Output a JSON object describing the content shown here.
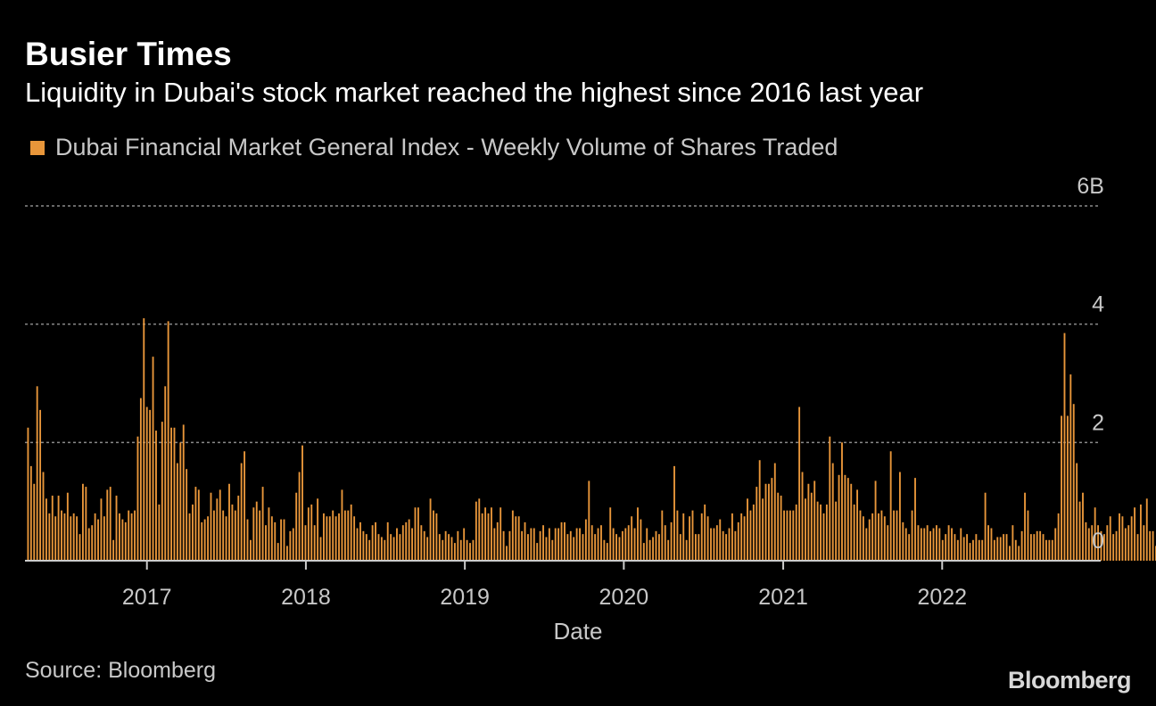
{
  "colors": {
    "bar": "#e8963a",
    "background": "#000000",
    "grid": "#8a8a8a",
    "axis": "#cccccc"
  },
  "source": "Source: Bloomberg",
  "logo": "Bloomberg",
  "chart_data": {
    "type": "bar",
    "title": "Busier Times",
    "subtitle": "Liquidity in Dubai's stock market reached the highest since 2016 last year",
    "legend": [
      "Dubai Financial Market General Index - Weekly Volume of Shares Traded"
    ],
    "legend_position": "top-left",
    "xlabel": "Date",
    "ylabel": "",
    "x_range": [
      "2016-03-27",
      "2022-12-31"
    ],
    "x_ticks": [
      {
        "date": "2017-01-01",
        "label": "2017"
      },
      {
        "date": "2018-01-01",
        "label": "2018"
      },
      {
        "date": "2019-01-01",
        "label": "2019"
      },
      {
        "date": "2020-01-01",
        "label": "2020"
      },
      {
        "date": "2021-01-01",
        "label": "2021"
      },
      {
        "date": "2022-01-01",
        "label": "2022"
      }
    ],
    "ylim": [
      0,
      6
    ],
    "y_unit": "B",
    "y_ticks": [
      {
        "value": 0,
        "label": "0"
      },
      {
        "value": 2,
        "label": "2"
      },
      {
        "value": 4,
        "label": "4"
      },
      {
        "value": 6,
        "label": "6B"
      }
    ],
    "grid": true,
    "series": [
      {
        "name": "Dubai Financial Market General Index - Weekly Volume of Shares Traded",
        "start_date": "2016-04-03",
        "interval_days": 7,
        "values": [
          2.25,
          1.6,
          1.3,
          2.95,
          2.55,
          1.5,
          1.05,
          0.8,
          1.1,
          0.75,
          1.1,
          0.85,
          0.8,
          1.15,
          0.75,
          0.8,
          0.75,
          0.45,
          1.3,
          1.25,
          0.55,
          0.6,
          0.8,
          0.7,
          1.05,
          0.75,
          1.2,
          1.25,
          0.35,
          1.1,
          0.8,
          0.7,
          0.65,
          0.85,
          0.8,
          0.85,
          2.1,
          2.75,
          4.1,
          2.6,
          2.55,
          3.45,
          2.2,
          0.95,
          2.35,
          2.95,
          4.05,
          2.25,
          2.25,
          1.65,
          2.0,
          2.3,
          1.55,
          0.8,
          0.95,
          1.25,
          1.2,
          0.65,
          0.7,
          0.75,
          1.15,
          0.85,
          1.05,
          1.2,
          0.85,
          0.75,
          1.3,
          0.95,
          0.85,
          1.1,
          1.65,
          1.85,
          0.7,
          0.35,
          0.9,
          1.0,
          0.85,
          1.25,
          0.6,
          0.9,
          0.75,
          0.65,
          0.3,
          0.7,
          0.7,
          0.25,
          0.5,
          0.55,
          1.15,
          1.5,
          1.95,
          0.6,
          0.9,
          0.95,
          0.6,
          1.05,
          0.4,
          0.8,
          0.75,
          0.75,
          0.85,
          0.75,
          0.8,
          1.2,
          0.85,
          0.85,
          0.95,
          0.75,
          0.55,
          0.65,
          0.5,
          0.45,
          0.35,
          0.6,
          0.65,
          0.45,
          0.4,
          0.35,
          0.65,
          0.45,
          0.4,
          0.55,
          0.45,
          0.6,
          0.65,
          0.7,
          0.55,
          0.9,
          0.9,
          0.6,
          0.5,
          0.4,
          1.05,
          0.85,
          0.8,
          0.45,
          0.35,
          0.5,
          0.45,
          0.4,
          0.3,
          0.5,
          0.35,
          0.55,
          0.35,
          0.3,
          0.35,
          1.0,
          1.05,
          0.8,
          0.9,
          0.8,
          0.9,
          0.55,
          0.65,
          0.9,
          0.5,
          0.25,
          0.5,
          0.85,
          0.75,
          0.75,
          0.5,
          0.65,
          0.45,
          0.55,
          0.55,
          0.3,
          0.5,
          0.6,
          0.4,
          0.55,
          0.35,
          0.55,
          0.55,
          0.65,
          0.65,
          0.45,
          0.5,
          0.4,
          0.55,
          0.55,
          0.45,
          0.7,
          1.35,
          0.6,
          0.45,
          0.55,
          0.6,
          0.35,
          0.3,
          0.9,
          0.55,
          0.45,
          0.4,
          0.5,
          0.55,
          0.6,
          0.75,
          0.55,
          0.9,
          0.7,
          0.3,
          0.55,
          0.35,
          0.4,
          0.5,
          0.45,
          0.85,
          0.6,
          0.35,
          0.65,
          1.6,
          0.85,
          0.45,
          0.8,
          0.35,
          0.75,
          0.85,
          0.45,
          0.45,
          0.8,
          0.95,
          0.75,
          0.55,
          0.55,
          0.6,
          0.7,
          0.5,
          0.45,
          0.55,
          0.8,
          0.5,
          0.65,
          0.8,
          0.75,
          1.05,
          0.85,
          0.95,
          1.25,
          1.7,
          1.05,
          1.3,
          1.3,
          1.4,
          1.65,
          1.15,
          1.1,
          0.85,
          0.85,
          0.85,
          0.85,
          0.95,
          2.6,
          1.5,
          1.05,
          1.3,
          1.15,
          1.35,
          1.0,
          0.95,
          0.8,
          0.95,
          2.1,
          1.65,
          1.0,
          1.45,
          2.0,
          1.45,
          1.4,
          1.3,
          0.95,
          1.2,
          0.85,
          0.75,
          0.55,
          0.7,
          0.8,
          1.35,
          0.8,
          0.85,
          0.75,
          0.6,
          1.85,
          0.85,
          0.85,
          1.5,
          0.65,
          0.55,
          0.45,
          0.85,
          1.4,
          0.6,
          0.55,
          0.55,
          0.6,
          0.5,
          0.55,
          0.6,
          0.55,
          0.35,
          0.45,
          0.6,
          0.55,
          0.45,
          0.35,
          0.55,
          0.4,
          0.45,
          0.3,
          0.35,
          0.45,
          0.35,
          0.35,
          1.15,
          0.6,
          0.55,
          0.35,
          0.4,
          0.4,
          0.45,
          0.45,
          0.25,
          0.6,
          0.35,
          0.25,
          0.5,
          1.15,
          0.85,
          0.45,
          0.45,
          0.5,
          0.5,
          0.45,
          0.35,
          0.35,
          0.35,
          0.55,
          0.8,
          2.45,
          3.85,
          2.45,
          3.15,
          2.65,
          1.65,
          1.0,
          1.15,
          0.65,
          0.55,
          0.6,
          0.9,
          0.6,
          0.5,
          0.45,
          0.6,
          0.75,
          0.45,
          0.5,
          0.8,
          0.75,
          0.55,
          0.6,
          0.75,
          0.9,
          0.45,
          0.95,
          0.6,
          1.05,
          0.5,
          0.5,
          0.25,
          0.5,
          0.7,
          0.5,
          0.6,
          0.65,
          0.5,
          0.65,
          0.45,
          0.35,
          0.35,
          0.25,
          0.3,
          0.3,
          0.35,
          0.55,
          0.7,
          0.75,
          0.7,
          0.5,
          0.3,
          0.2
        ]
      }
    ]
  }
}
